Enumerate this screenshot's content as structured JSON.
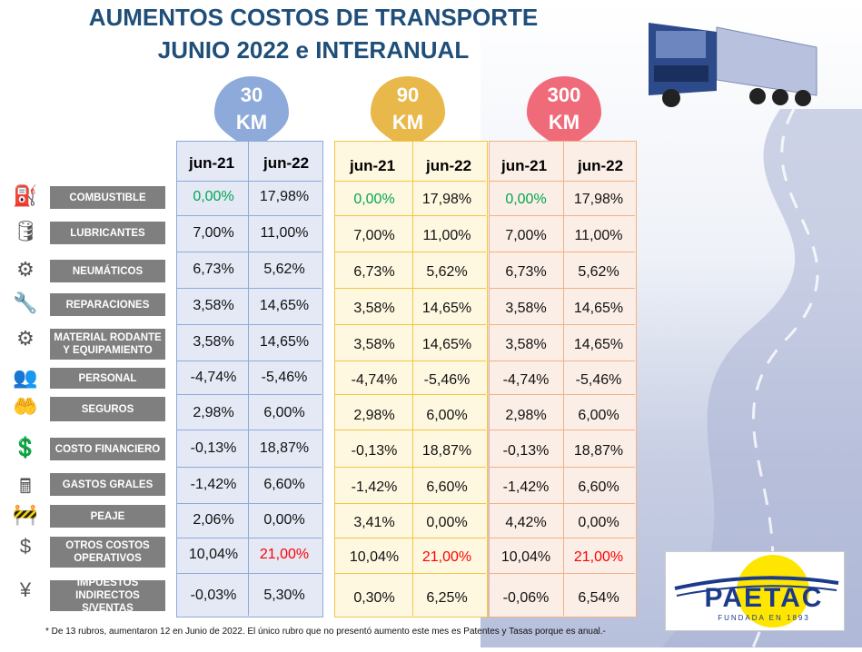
{
  "title": {
    "line1": "AUMENTOS COSTOS DE TRANSPORTE",
    "line2": "JUNIO 2022 e INTERANUAL"
  },
  "distances": [
    {
      "label_num": "30",
      "label_unit": "KM",
      "color": "#8eaadb"
    },
    {
      "label_num": "90",
      "label_unit": "KM",
      "color": "#e9b84a"
    },
    {
      "label_num": "300",
      "label_unit": "KM",
      "color": "#f06b7a"
    }
  ],
  "columns": [
    "jun-21",
    "jun-22"
  ],
  "rows": [
    {
      "label": "COMBUSTIBLE",
      "icon": "fuel-pump-icon"
    },
    {
      "label": "LUBRICANTES",
      "icon": "oil-can-icon"
    },
    {
      "label": "NEUMÁTICOS",
      "icon": "tire-icon"
    },
    {
      "label": "REPARACIONES",
      "icon": "wrench-icon"
    },
    {
      "label": "MATERIAL RODANTE Y EQUIPAMIENTO",
      "icon": "gear-truck-icon"
    },
    {
      "label": "PERSONAL",
      "icon": "people-icon"
    },
    {
      "label": "SEGUROS",
      "icon": "insurance-hand-icon"
    },
    {
      "label": "COSTO FINANCIERO",
      "icon": "cost-icon"
    },
    {
      "label": "GASTOS GRALES",
      "icon": "cash-register-icon"
    },
    {
      "label": "PEAJE",
      "icon": "toll-barrier-icon"
    },
    {
      "label": "OTROS COSTOS OPERATIVOS",
      "icon": "money-icon"
    },
    {
      "label": "IMPUESTOS INDIRECTOS S/VENTAS",
      "icon": "tax-icon"
    }
  ],
  "tables": {
    "km30": [
      [
        "0,00%",
        "17,98%"
      ],
      [
        "7,00%",
        "11,00%"
      ],
      [
        "6,73%",
        "5,62%"
      ],
      [
        "3,58%",
        "14,65%"
      ],
      [
        "3,58%",
        "14,65%"
      ],
      [
        "-4,74%",
        "-5,46%"
      ],
      [
        "2,98%",
        "6,00%"
      ],
      [
        "-0,13%",
        "18,87%"
      ],
      [
        "-1,42%",
        "6,60%"
      ],
      [
        "2,06%",
        "0,00%"
      ],
      [
        "10,04%",
        "21,00%"
      ],
      [
        "-0,03%",
        "5,30%"
      ]
    ],
    "km90": [
      [
        "0,00%",
        "17,98%"
      ],
      [
        "7,00%",
        "11,00%"
      ],
      [
        "6,73%",
        "5,62%"
      ],
      [
        "3,58%",
        "14,65%"
      ],
      [
        "3,58%",
        "14,65%"
      ],
      [
        "-4,74%",
        "-5,46%"
      ],
      [
        "2,98%",
        "6,00%"
      ],
      [
        "-0,13%",
        "18,87%"
      ],
      [
        "-1,42%",
        "6,60%"
      ],
      [
        "3,41%",
        "0,00%"
      ],
      [
        "10,04%",
        "21,00%"
      ],
      [
        "0,30%",
        "6,25%"
      ]
    ],
    "km300": [
      [
        "0,00%",
        "17,98%"
      ],
      [
        "7,00%",
        "11,00%"
      ],
      [
        "6,73%",
        "5,62%"
      ],
      [
        "3,58%",
        "14,65%"
      ],
      [
        "3,58%",
        "14,65%"
      ],
      [
        "-4,74%",
        "-5,46%"
      ],
      [
        "2,98%",
        "6,00%"
      ],
      [
        "-0,13%",
        "18,87%"
      ],
      [
        "-1,42%",
        "6,60%"
      ],
      [
        "4,42%",
        "0,00%"
      ],
      [
        "10,04%",
        "21,00%"
      ],
      [
        "-0,06%",
        "6,54%"
      ]
    ]
  },
  "footnote": "* De 13 rubros, aumentaron 12 en Junio de 2022. El único rubro que no presentó aumento este mes es Patentes y Tasas porque es anual.-",
  "logo": {
    "name": "PAETAC",
    "tagline": "FUNDADA EN 1893"
  },
  "colors": {
    "title": "#1f4e79",
    "green": "#00a651",
    "red": "#ff0000",
    "label_bg": "#7f7f7f"
  }
}
